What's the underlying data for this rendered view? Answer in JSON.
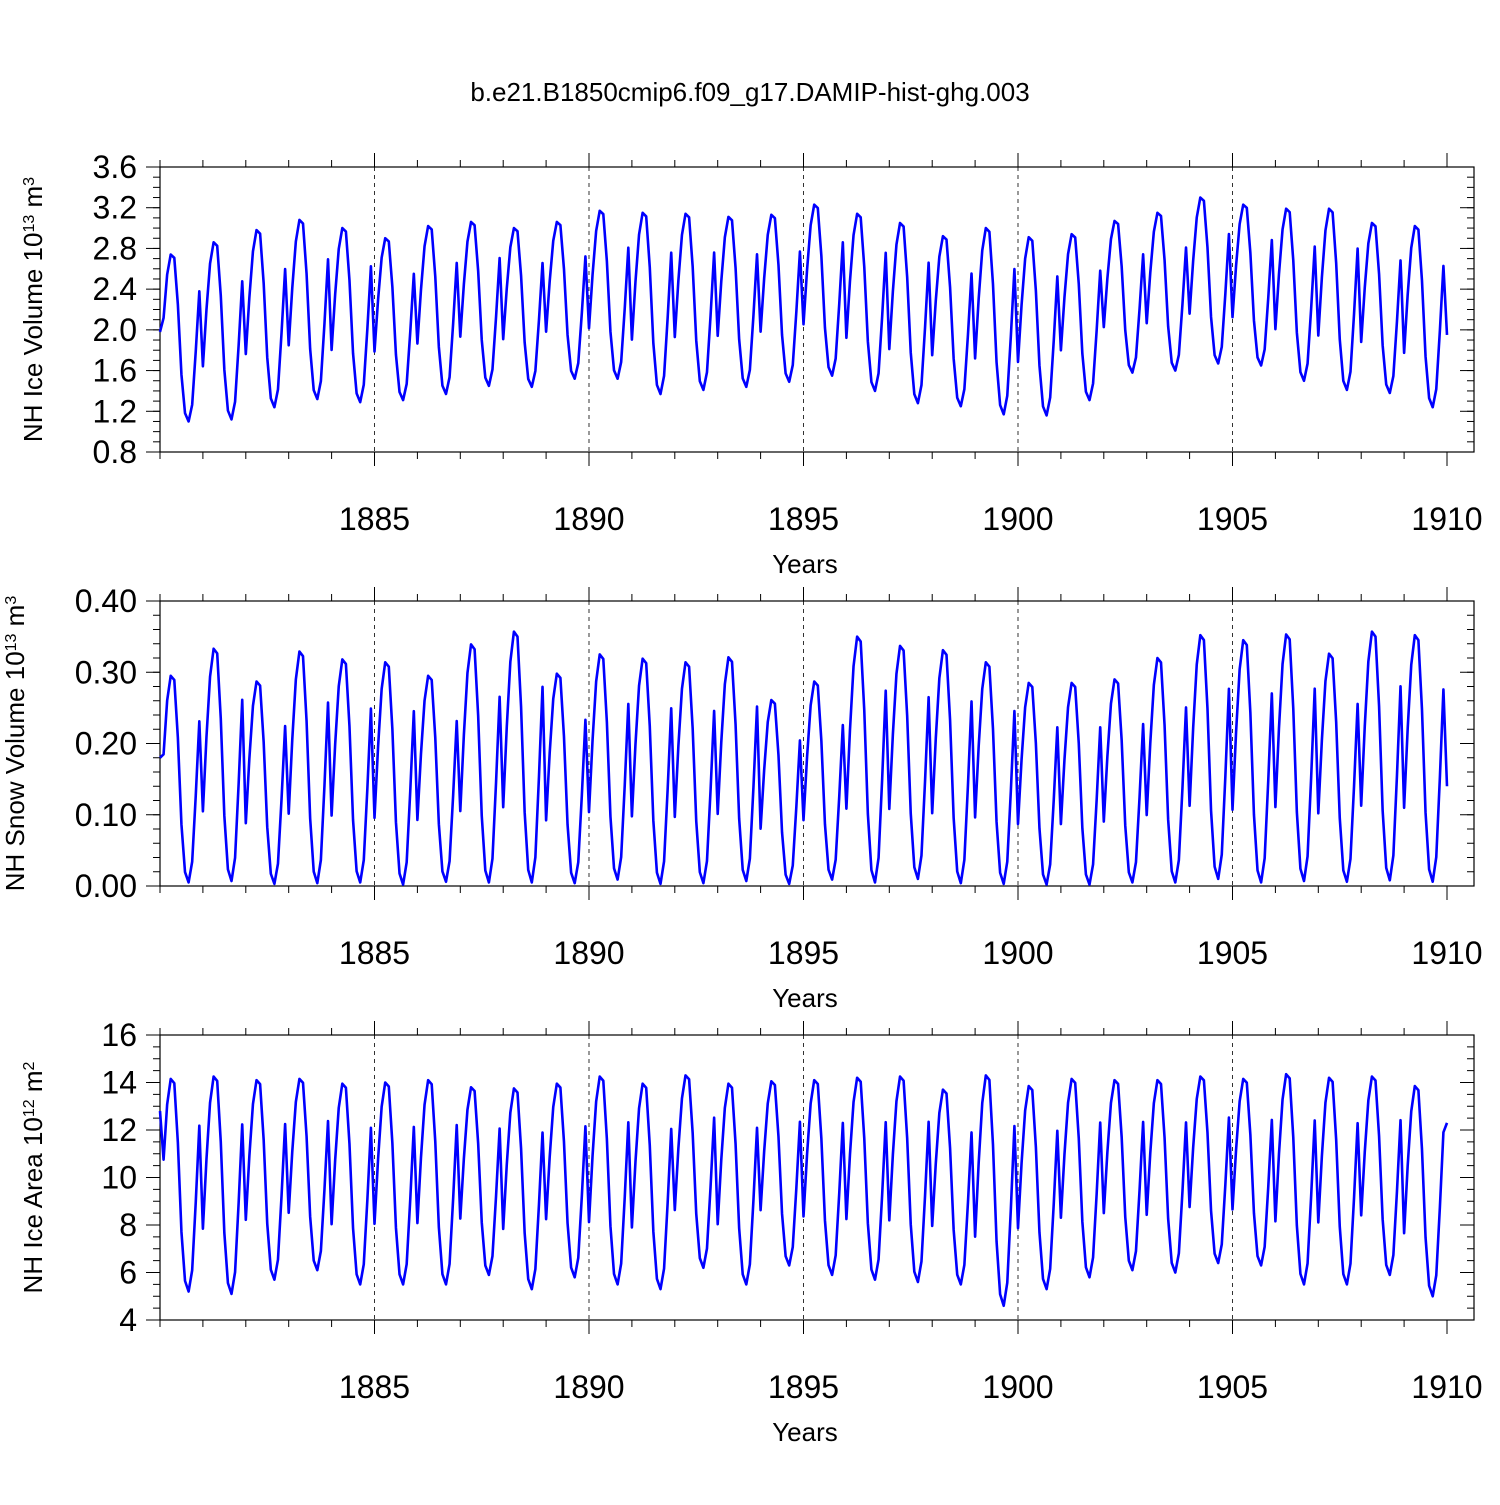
{
  "figure": {
    "title": "b.e21.B1850cmip6.f09_g17.DAMIP-hist-ghg.003",
    "line_color": "#0000ff"
  },
  "chart_data": [
    {
      "type": "line",
      "ylabel": {
        "main": "NH Ice Volume 10",
        "exp": "13",
        "unit": " m",
        "unit_exp": "3"
      },
      "xlabel": "Years",
      "xlim": [
        1880.0,
        1910.0
      ],
      "x_ticks": [
        1885,
        1890,
        1895,
        1900,
        1905,
        1910
      ],
      "ylim": [
        0.8,
        3.6
      ],
      "y_ticks": [
        "0.8",
        "1.2",
        "1.6",
        "2.0",
        "2.4",
        "2.8",
        "3.2",
        "3.6"
      ],
      "y_minor_step": 0.1,
      "vlines": [
        1885,
        1890,
        1895,
        1900,
        1905
      ],
      "series": [
        {
          "name": "NH Ice Volume",
          "start": 1880.0,
          "step": 0.0833333,
          "annual_max": [
            2.74,
            2.86,
            2.98,
            3.08,
            3.0,
            2.9,
            3.02,
            3.06,
            3.0,
            3.06,
            3.17,
            3.15,
            3.14,
            3.11,
            3.13,
            3.23,
            3.14,
            3.05,
            2.92,
            3.0,
            2.91,
            2.94,
            3.07,
            3.15,
            3.3,
            3.23,
            3.19,
            3.19,
            3.05,
            3.02
          ],
          "annual_min": [
            1.1,
            1.12,
            1.24,
            1.32,
            1.29,
            1.31,
            1.37,
            1.45,
            1.44,
            1.52,
            1.52,
            1.37,
            1.41,
            1.44,
            1.49,
            1.55,
            1.4,
            1.28,
            1.25,
            1.17,
            1.16,
            1.31,
            1.58,
            1.6,
            1.67,
            1.65,
            1.5,
            1.41,
            1.38,
            1.24
          ],
          "start_value": 1.98,
          "end_value": 1.95
        }
      ]
    },
    {
      "type": "line",
      "ylabel": {
        "main": "NH Snow Volume 10",
        "exp": "13",
        "unit": " m",
        "unit_exp": "3"
      },
      "xlabel": "Years",
      "xlim": [
        1880.0,
        1910.0
      ],
      "x_ticks": [
        1885,
        1890,
        1895,
        1900,
        1905,
        1910
      ],
      "ylim": [
        0.0,
        0.4
      ],
      "y_ticks": [
        "0.00",
        "0.10",
        "0.20",
        "0.30",
        "0.40"
      ],
      "y_minor_step": 0.02,
      "vlines": [
        1885,
        1890,
        1895,
        1900,
        1905
      ],
      "series": [
        {
          "name": "NH Snow Volume",
          "start": 1880.0,
          "step": 0.0833333,
          "annual_max": [
            0.295,
            0.333,
            0.287,
            0.329,
            0.318,
            0.314,
            0.295,
            0.339,
            0.357,
            0.298,
            0.325,
            0.319,
            0.314,
            0.321,
            0.261,
            0.287,
            0.35,
            0.337,
            0.331,
            0.314,
            0.285,
            0.285,
            0.29,
            0.32,
            0.352,
            0.345,
            0.353,
            0.326,
            0.357,
            0.352
          ],
          "annual_min": [
            0.005,
            0.007,
            0.003,
            0.004,
            0.005,
            0.002,
            0.006,
            0.005,
            0.005,
            0.004,
            0.009,
            0.003,
            0.004,
            0.007,
            0.003,
            0.009,
            0.005,
            0.01,
            0.004,
            0.003,
            0.002,
            0.002,
            0.005,
            0.005,
            0.01,
            0.005,
            0.007,
            0.006,
            0.008,
            0.006
          ],
          "start_value": 0.18,
          "end_value": 0.14
        }
      ]
    },
    {
      "type": "line",
      "ylabel": {
        "main": "NH Ice Area 10",
        "exp": "12",
        "unit": " m",
        "unit_exp": "2"
      },
      "xlabel": "Years",
      "xlim": [
        1880.0,
        1910.0
      ],
      "x_ticks": [
        1885,
        1890,
        1895,
        1900,
        1905,
        1910
      ],
      "ylim": [
        4,
        16
      ],
      "y_ticks": [
        "4",
        "6",
        "8",
        "10",
        "12",
        "14",
        "16"
      ],
      "y_minor_step": 0.5,
      "vlines": [
        1885,
        1890,
        1895,
        1900,
        1905
      ],
      "series": [
        {
          "name": "NH Ice Area",
          "start": 1880.0,
          "step": 0.0833333,
          "annual_max": [
            14.15,
            14.25,
            14.1,
            14.15,
            13.95,
            14.0,
            14.1,
            13.8,
            13.75,
            13.95,
            14.25,
            13.95,
            14.3,
            13.95,
            14.05,
            14.1,
            14.2,
            14.25,
            13.7,
            14.3,
            13.85,
            14.15,
            14.1,
            14.1,
            14.25,
            14.15,
            14.35,
            14.2,
            14.25,
            13.85
          ],
          "annual_min": [
            5.2,
            5.1,
            5.7,
            6.1,
            5.5,
            5.5,
            5.5,
            5.9,
            5.3,
            5.8,
            5.5,
            5.3,
            6.2,
            5.5,
            6.3,
            5.9,
            5.7,
            5.6,
            5.5,
            4.6,
            5.3,
            5.8,
            6.1,
            6.0,
            6.4,
            6.3,
            5.5,
            5.5,
            5.9,
            5.0
          ],
          "start_value": 12.8,
          "end_value": 12.3
        }
      ]
    }
  ]
}
